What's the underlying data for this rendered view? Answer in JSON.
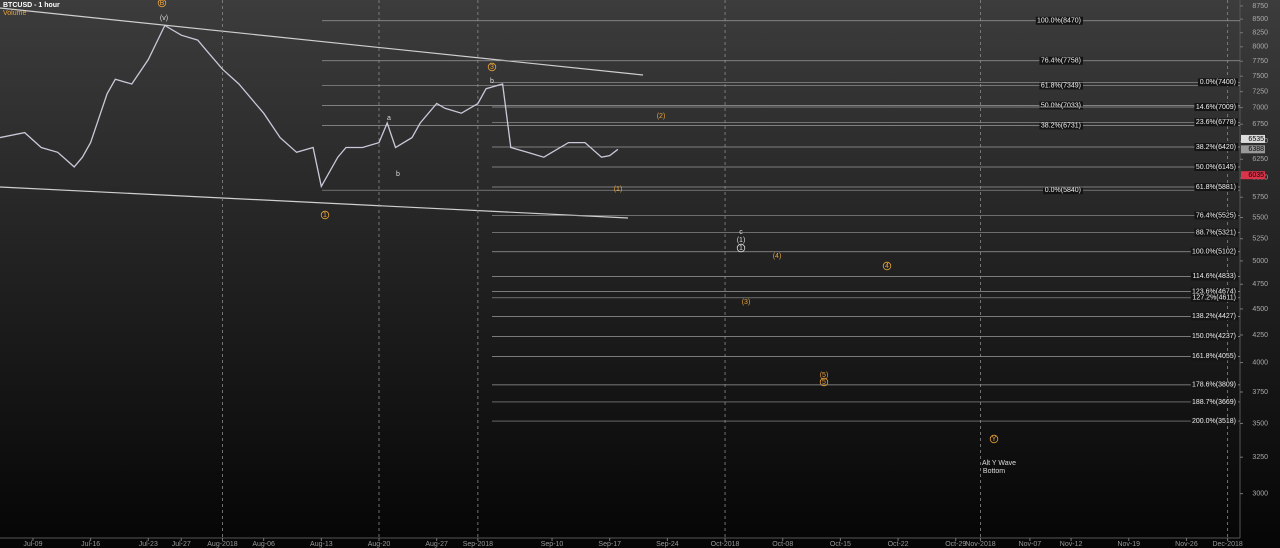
{
  "chart_data": {
    "type": "line",
    "title": "BTCUSD - 1 hour",
    "subtitle": "Volume",
    "color": "#c9c9d9",
    "log_scale": true,
    "x": [
      186,
      189,
      191,
      193,
      195,
      196,
      197,
      199,
      200,
      202,
      204,
      206,
      208,
      210,
      211,
      213,
      215,
      217,
      218,
      220,
      222,
      224,
      225,
      227,
      228,
      230,
      232,
      233,
      234,
      236,
      237,
      239,
      240,
      242,
      244,
      245,
      247,
      248,
      250,
      252,
      253,
      255,
      257,
      259,
      260,
      261
    ],
    "values": [
      6554,
      6627,
      6413,
      6346,
      6146,
      6278,
      6483,
      7216,
      7449,
      7373,
      7780,
      8383,
      8206,
      8118,
      7946,
      7616,
      7373,
      7064,
      6914,
      6554,
      6346,
      6413,
      5888,
      6278,
      6413,
      6413,
      6483,
      6767,
      6413,
      6554,
      6767,
      7064,
      6990,
      6914,
      7064,
      7296,
      7373,
      6413,
      6346,
      6278,
      6346,
      6483,
      6483,
      6278,
      6300,
      6388
    ],
    "xlim": [
      186,
      336.5
    ],
    "xticks": [
      {
        "value": 190,
        "label": "Jul-09"
      },
      {
        "value": 197,
        "label": "Jul-16"
      },
      {
        "value": 204,
        "label": "Jul-23"
      },
      {
        "value": 208,
        "label": "Jul-27"
      },
      {
        "value": 213,
        "label": "Aug-2018"
      },
      {
        "value": 218,
        "label": "Aug-06"
      },
      {
        "value": 225,
        "label": "Aug-13"
      },
      {
        "value": 232,
        "label": "Aug-20"
      },
      {
        "value": 239,
        "label": "Aug-27"
      },
      {
        "value": 244,
        "label": "Sep-2018"
      },
      {
        "value": 253,
        "label": "Sep-10"
      },
      {
        "value": 260,
        "label": "Sep-17"
      },
      {
        "value": 267,
        "label": "Sep-24"
      },
      {
        "value": 274,
        "label": "Oct-2018"
      },
      {
        "value": 281,
        "label": "Oct-08"
      },
      {
        "value": 288,
        "label": "Oct-15"
      },
      {
        "value": 295,
        "label": "Oct-22"
      },
      {
        "value": 302,
        "label": "Oct-29"
      },
      {
        "value": 305,
        "label": "Nov-2018"
      },
      {
        "value": 311,
        "label": "Nov-07"
      },
      {
        "value": 316,
        "label": "Nov-12"
      },
      {
        "value": 323,
        "label": "Nov-19"
      },
      {
        "value": 330,
        "label": "Nov-26"
      },
      {
        "value": 335,
        "label": "Dec-2018"
      }
    ],
    "ylim": [
      2770,
      8865
    ],
    "yticks": [
      3000,
      3250,
      3500,
      3750,
      4000,
      4250,
      4500,
      4750,
      5000,
      5250,
      5500,
      5750,
      6000,
      6250,
      6500,
      6750,
      7000,
      7250,
      7500,
      7750,
      8000,
      8250,
      8500,
      8750
    ],
    "price_tags": [
      {
        "value": 6535,
        "color": "#dddddd"
      },
      {
        "value": 6388,
        "color": "#999999"
      },
      {
        "value": 6035,
        "color": "#d9344a"
      }
    ],
    "fib_sets": [
      {
        "levels": [
          {
            "label": "100.0%(8470)",
            "value": 8470
          },
          {
            "label": "76.4%(7758)",
            "value": 7758
          },
          {
            "label": "61.8%(7349)",
            "value": 7349
          },
          {
            "label": "50.0%(7033)",
            "value": 7033
          },
          {
            "label": "38.2%(6731)",
            "value": 6731
          },
          {
            "label": "0.0%(5840)",
            "value": 5840
          }
        ]
      },
      {
        "levels": [
          {
            "label": "0.0%(7400)",
            "value": 7400
          },
          {
            "label": "14.6%(7009)",
            "value": 7009
          },
          {
            "label": "23.6%(6778)",
            "value": 6778
          },
          {
            "label": "38.2%(6420)",
            "value": 6420
          },
          {
            "label": "50.0%(6145)",
            "value": 6145
          },
          {
            "label": "61.8%(5881)",
            "value": 5881
          },
          {
            "label": "76.4%(5525)",
            "value": 5525
          },
          {
            "label": "88.7%(5321)",
            "value": 5321
          },
          {
            "label": "100.0%(5102)",
            "value": 5102
          },
          {
            "label": "114.6%(4833)",
            "value": 4833
          },
          {
            "label": "123.6%(4674)",
            "value": 4674
          },
          {
            "label": "127.2%(4611)",
            "value": 4611
          },
          {
            "label": "138.2%(4427)",
            "value": 4427
          },
          {
            "label": "150.0%(4237)",
            "value": 4237
          },
          {
            "label": "161.8%(4055)",
            "value": 4055
          },
          {
            "label": "178.6%(3809)",
            "value": 3809
          },
          {
            "label": "188.7%(3669)",
            "value": 3669
          },
          {
            "label": "200.0%(3518)",
            "value": 3518
          }
        ]
      }
    ],
    "annotations": [
      {
        "text": "(v)",
        "color": "#dddddd",
        "circled": false
      },
      {
        "text": "b",
        "color": "#dddddd",
        "circled": false
      },
      {
        "text": "a",
        "color": "#dddddd",
        "circled": false
      },
      {
        "text": "b",
        "color": "#dddddd",
        "circled": false
      },
      {
        "text": "c",
        "color": "#dddddd",
        "circled": false
      },
      {
        "text": "(1)",
        "color": "#dddddd",
        "circled": false
      },
      {
        "text": "1",
        "color": "#dddddd",
        "circled": true
      },
      {
        "text": "(1)",
        "color": "#e8a33a",
        "circled": false
      },
      {
        "text": "(2)",
        "color": "#e8a33a",
        "circled": false
      },
      {
        "text": "(3)",
        "color": "#e8a33a",
        "circled": false
      },
      {
        "text": "(4)",
        "color": "#e8a33a",
        "circled": false
      },
      {
        "text": "(5)",
        "color": "#e8a33a",
        "circled": false
      },
      {
        "text": "1",
        "color": "#e8a33a",
        "circled": true
      },
      {
        "text": "3",
        "color": "#e8a33a",
        "circled": true
      },
      {
        "text": "4",
        "color": "#e8a33a",
        "circled": true
      },
      {
        "text": "5",
        "color": "#e8a33a",
        "circled": true
      },
      {
        "text": "B",
        "color": "#e8a33a",
        "circled": true
      },
      {
        "text": "Y",
        "color": "#e8a33a",
        "circled": true
      },
      {
        "text": "Alt Y Wave",
        "color": "#dddddd",
        "circled": false
      },
      {
        "text": "Bottom",
        "color": "#dddddd",
        "circled": false
      }
    ]
  }
}
